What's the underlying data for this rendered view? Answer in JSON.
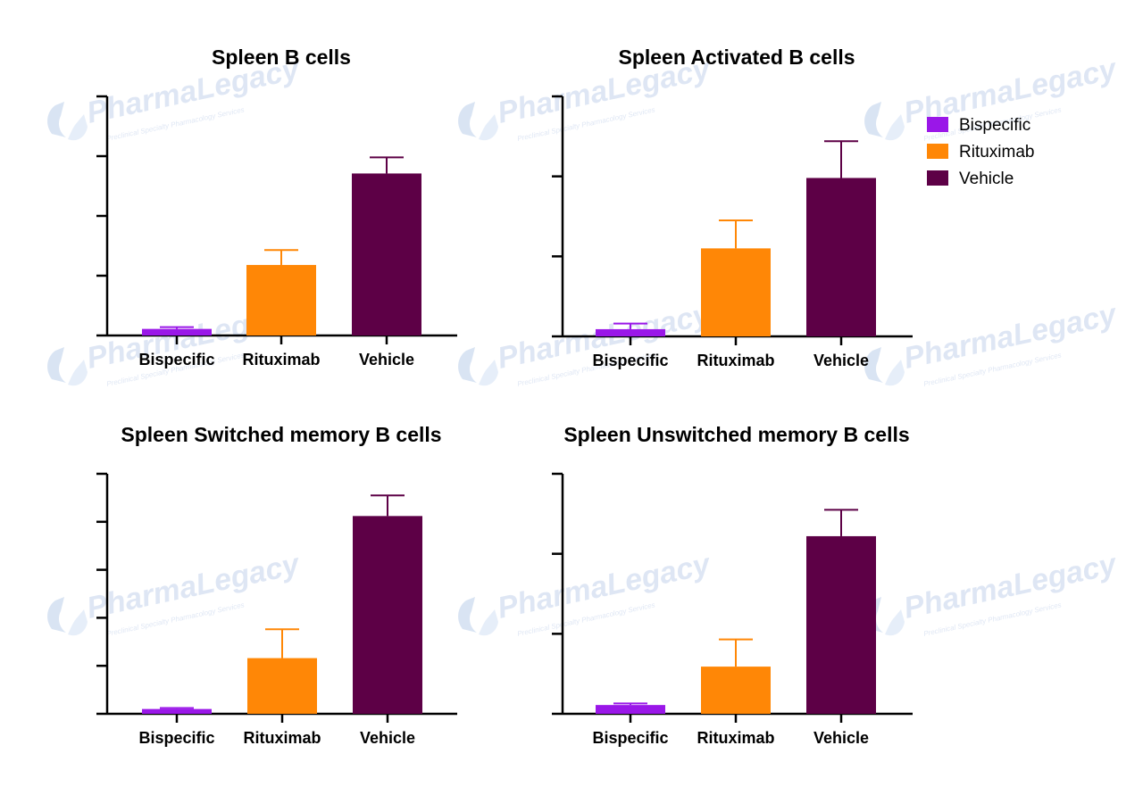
{
  "watermark": {
    "brand": "PharmaLegacy",
    "tagline": "Preclinical Specialty Pharmacology Services"
  },
  "legend": {
    "placement": "top-right",
    "items": [
      {
        "name": "Bispecific",
        "color": "#9a17e8"
      },
      {
        "name": "Rituximab",
        "color": "#ff8706"
      },
      {
        "name": "Vehicle",
        "color": "#5d0046"
      }
    ]
  },
  "chart_data": [
    {
      "type": "bar",
      "title": "Spleen B cells",
      "categories": [
        "Bispecific",
        "Rituximab",
        "Vehicle"
      ],
      "values": [
        0.11,
        1.18,
        2.71
      ],
      "errors": [
        0.03,
        0.25,
        0.27
      ],
      "ylim": [
        0,
        4
      ],
      "yticks": 5,
      "ytick_labels": false,
      "grid": false
    },
    {
      "type": "bar",
      "title": "Spleen Activated B cells",
      "categories": [
        "Bispecific",
        "Rituximab",
        "Vehicle"
      ],
      "values": [
        0.09,
        1.1,
        1.98
      ],
      "errors": [
        0.07,
        0.35,
        0.46
      ],
      "ylim": [
        0,
        3
      ],
      "yticks": 4,
      "ytick_labels": false,
      "grid": false
    },
    {
      "type": "bar",
      "title": "Spleen Switched memory B cells",
      "categories": [
        "Bispecific",
        "Rituximab",
        "Vehicle"
      ],
      "values": [
        0.1,
        1.16,
        4.12
      ],
      "errors": [
        0.02,
        0.6,
        0.43
      ],
      "ylim": [
        0,
        5
      ],
      "yticks": 6,
      "ytick_labels": false,
      "grid": false
    },
    {
      "type": "bar",
      "title": "Spleen Unswitched memory B cells",
      "categories": [
        "Bispecific",
        "Rituximab",
        "Vehicle"
      ],
      "values": [
        0.11,
        0.59,
        2.22
      ],
      "errors": [
        0.02,
        0.34,
        0.33
      ],
      "ylim": [
        0,
        3
      ],
      "yticks": 4,
      "ytick_labels": false,
      "grid": false
    }
  ]
}
